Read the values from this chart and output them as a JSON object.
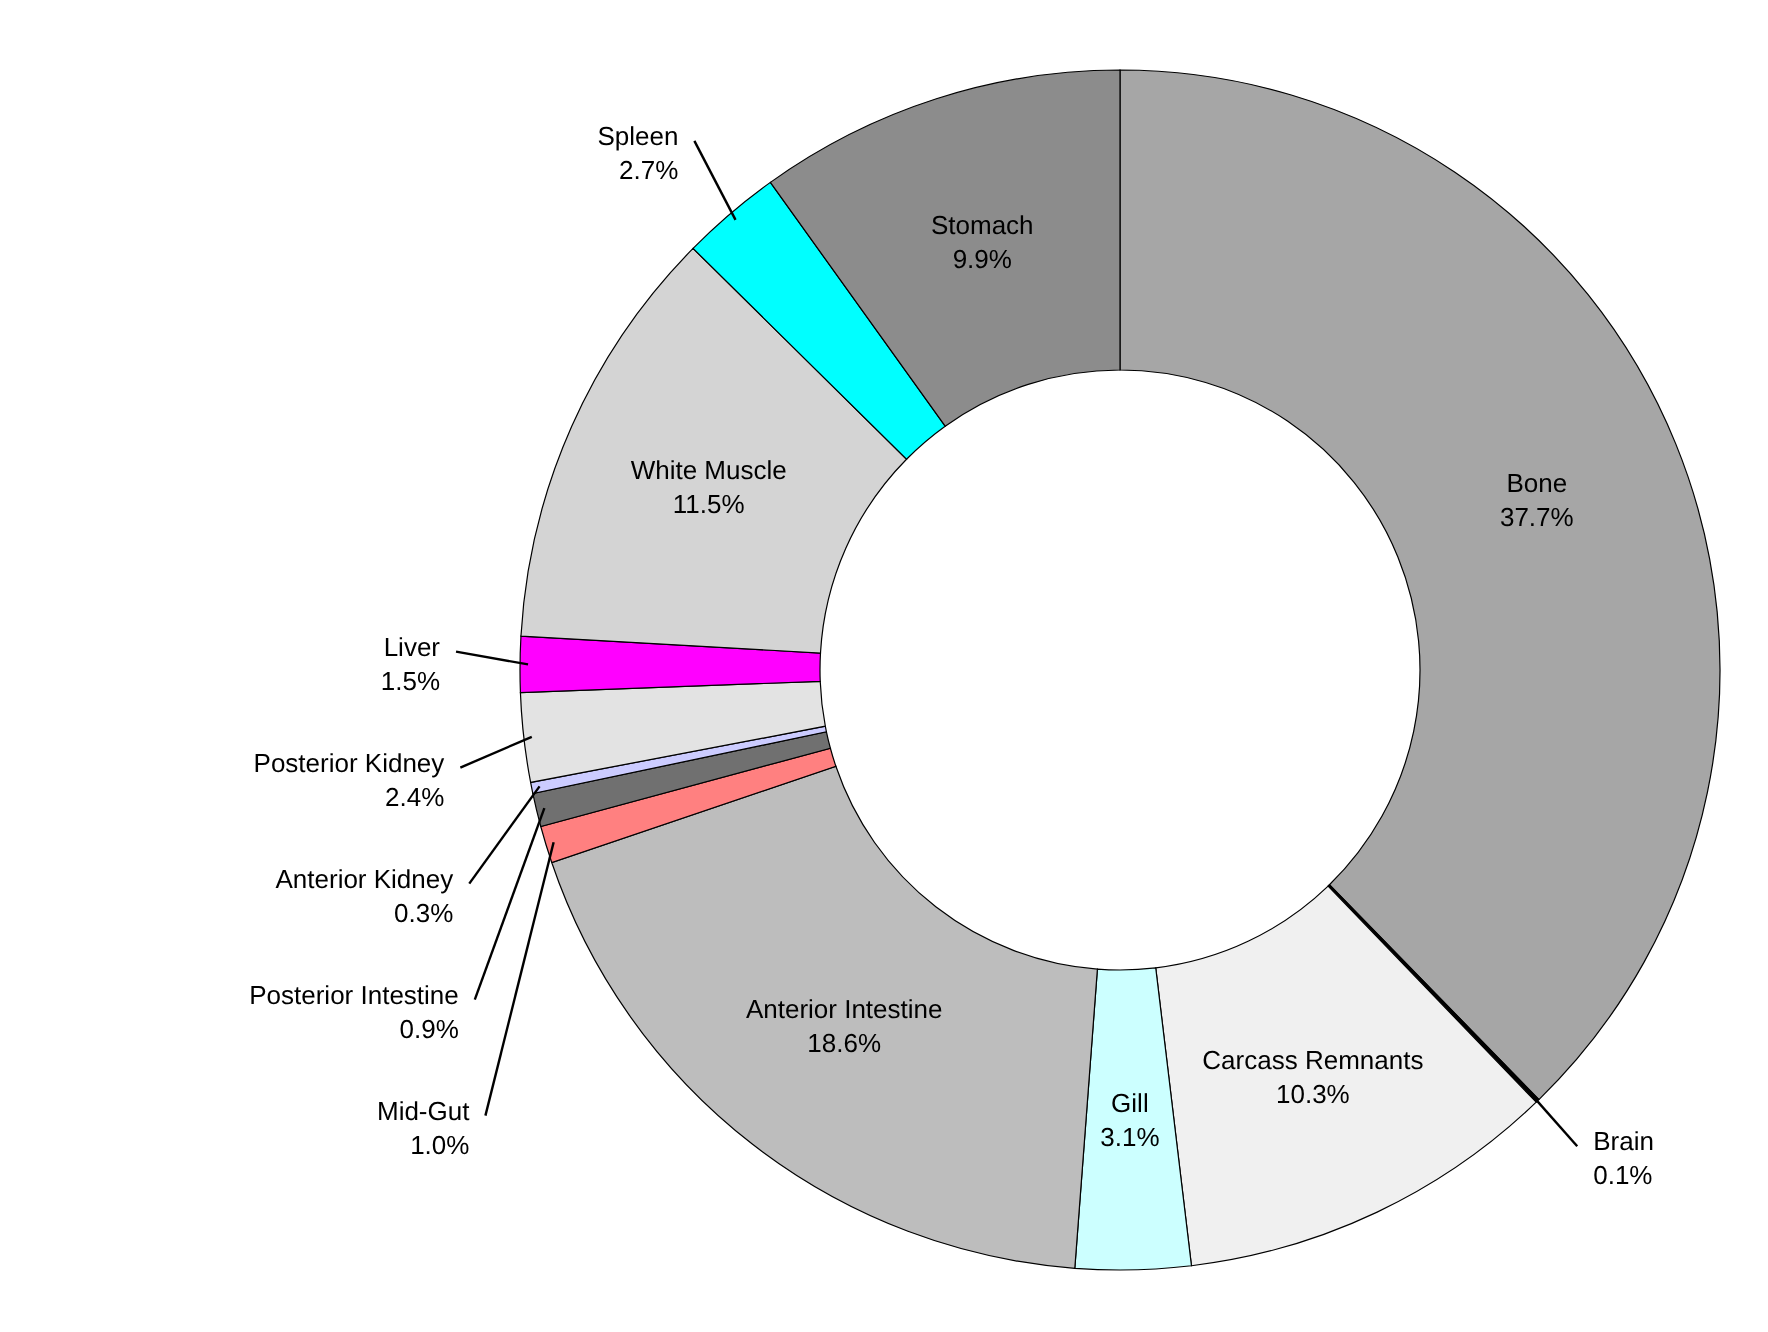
{
  "chart_data": {
    "type": "donut",
    "categories": [
      "Bone",
      "Brain",
      "Carcass Remnants",
      "Gill",
      "Anterior Intestine",
      "Mid-Gut",
      "Posterior Intestine",
      "Anterior Kidney",
      "Posterior Kidney",
      "Liver",
      "White Muscle",
      "Spleen",
      "Stomach"
    ],
    "values": [
      37.7,
      0.1,
      10.3,
      3.1,
      18.6,
      1.0,
      0.9,
      0.3,
      2.4,
      1.5,
      11.5,
      2.7,
      9.9
    ],
    "value_labels": [
      "37.7%",
      "0.1%",
      "10.3%",
      "3.1%",
      "18.6%",
      "1.0%",
      "0.9%",
      "0.3%",
      "2.4%",
      "1.5%",
      "11.5%",
      "2.7%",
      "9.9%"
    ],
    "colors": [
      "#a6a6a6",
      "#000000",
      "#f0f0f0",
      "#ccffff",
      "#bdbdbd",
      "#ff8080",
      "#707070",
      "#ccccff",
      "#e3e3e3",
      "#ff00ff",
      "#d4d4d4",
      "#00ffff",
      "#8c8c8c"
    ]
  }
}
